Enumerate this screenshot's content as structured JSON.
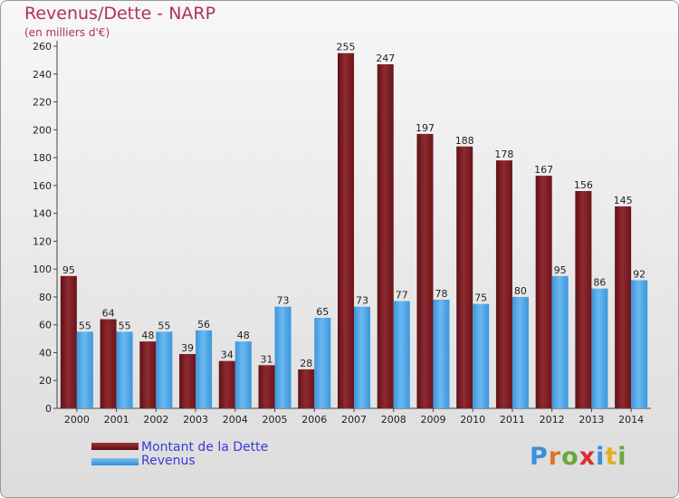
{
  "title": "Revenus/Dette - NARP",
  "subtitle": "(en milliers d'€)",
  "colors": {
    "dette": "#7a1b20",
    "revenus": "#4aa3e6",
    "title": "#b03060",
    "legend_text": "#3a3ad8"
  },
  "legend": [
    {
      "label": "Montant de la Dette",
      "color": "#7a1b20"
    },
    {
      "label": "Revenus",
      "color": "#4aa3e6"
    }
  ],
  "logo": {
    "text": "Proxiti"
  },
  "chart_data": {
    "type": "bar",
    "categories": [
      "2000",
      "2001",
      "2002",
      "2003",
      "2004",
      "2005",
      "2006",
      "2007",
      "2008",
      "2009",
      "2010",
      "2011",
      "2012",
      "2013",
      "2014"
    ],
    "series": [
      {
        "name": "Montant de la Dette",
        "values": [
          95,
          64,
          48,
          39,
          34,
          31,
          28,
          255,
          247,
          197,
          188,
          178,
          167,
          156,
          145
        ]
      },
      {
        "name": "Revenus",
        "values": [
          55,
          55,
          55,
          56,
          48,
          73,
          65,
          73,
          77,
          78,
          75,
          80,
          95,
          86,
          92
        ]
      }
    ],
    "ylim": [
      0,
      260
    ],
    "yticks": [
      0,
      20,
      40,
      60,
      80,
      100,
      120,
      140,
      160,
      180,
      200,
      220,
      240,
      260
    ],
    "grid": false,
    "legend_position": "bottom-left"
  }
}
